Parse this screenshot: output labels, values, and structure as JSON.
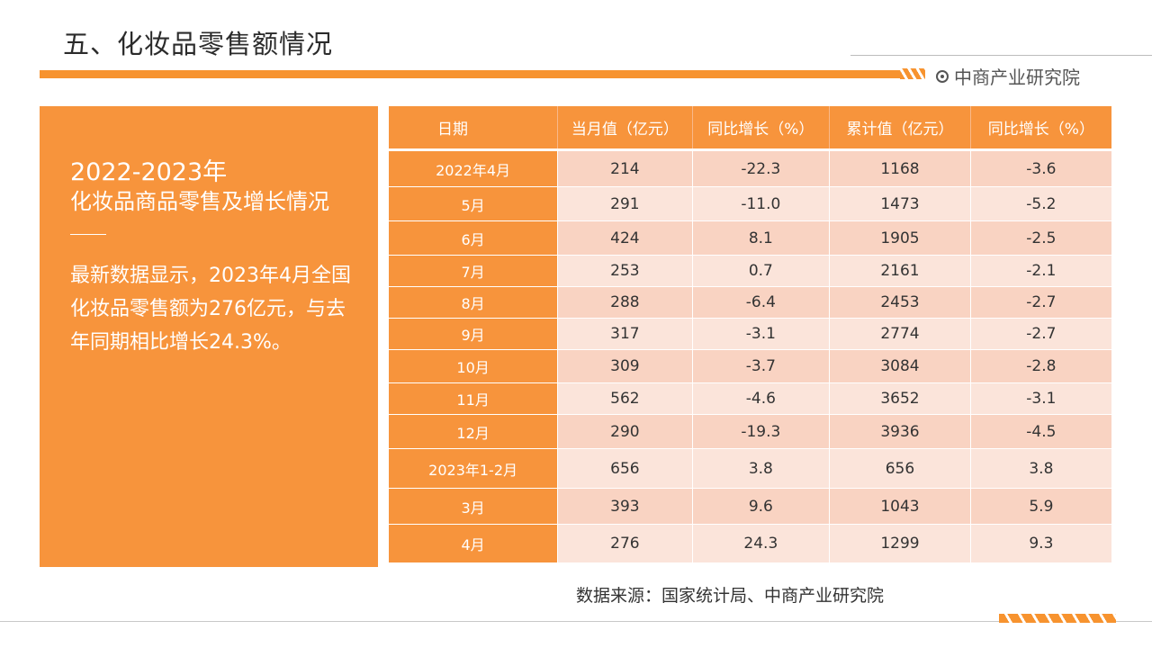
{
  "header": {
    "title": "五、化妆品零售额情况",
    "brand": "中商产业研究院"
  },
  "panel": {
    "year": "2022-2023年",
    "subtitle": "化妆品商品零售及增长情况",
    "text": "最新数据显示，2023年4月全国化妆品零售额为276亿元，与去年同期相比增长24.3%。"
  },
  "table": {
    "headers": [
      "日期",
      "当月值（亿元）",
      "同比增长（%）",
      "累计值（亿元）",
      "同比增长（%）"
    ],
    "rows": [
      [
        "2022年4月",
        "214",
        "-22.3",
        "1168",
        "-3.6"
      ],
      [
        "5月",
        "291",
        "-11.0",
        "1473",
        "-5.2"
      ],
      [
        "6月",
        "424",
        "8.1",
        "1905",
        "-2.5"
      ],
      [
        "7月",
        "253",
        "0.7",
        "2161",
        "-2.1"
      ],
      [
        "8月",
        "288",
        "-6.4",
        "2453",
        "-2.7"
      ],
      [
        "9月",
        "317",
        "-3.1",
        "2774",
        "-2.7"
      ],
      [
        "10月",
        "309",
        "-3.7",
        "3084",
        "-2.8"
      ],
      [
        "11月",
        "562",
        "-4.6",
        "3652",
        "-3.1"
      ],
      [
        "12月",
        "290",
        "-19.3",
        "3936",
        "-4.5"
      ],
      [
        "2023年1-2月",
        "656",
        "3.8",
        "656",
        "3.8"
      ],
      [
        "3月",
        "393",
        "9.6",
        "1043",
        "5.9"
      ],
      [
        "4月",
        "276",
        "24.3",
        "1299",
        "9.3"
      ]
    ]
  },
  "footer": {
    "source": "数据来源：国家统计局、中商产业研究院"
  },
  "colors": {
    "accent": "#f7943c",
    "row_odd": "#f9d3c2",
    "row_even": "#fbe4da"
  }
}
